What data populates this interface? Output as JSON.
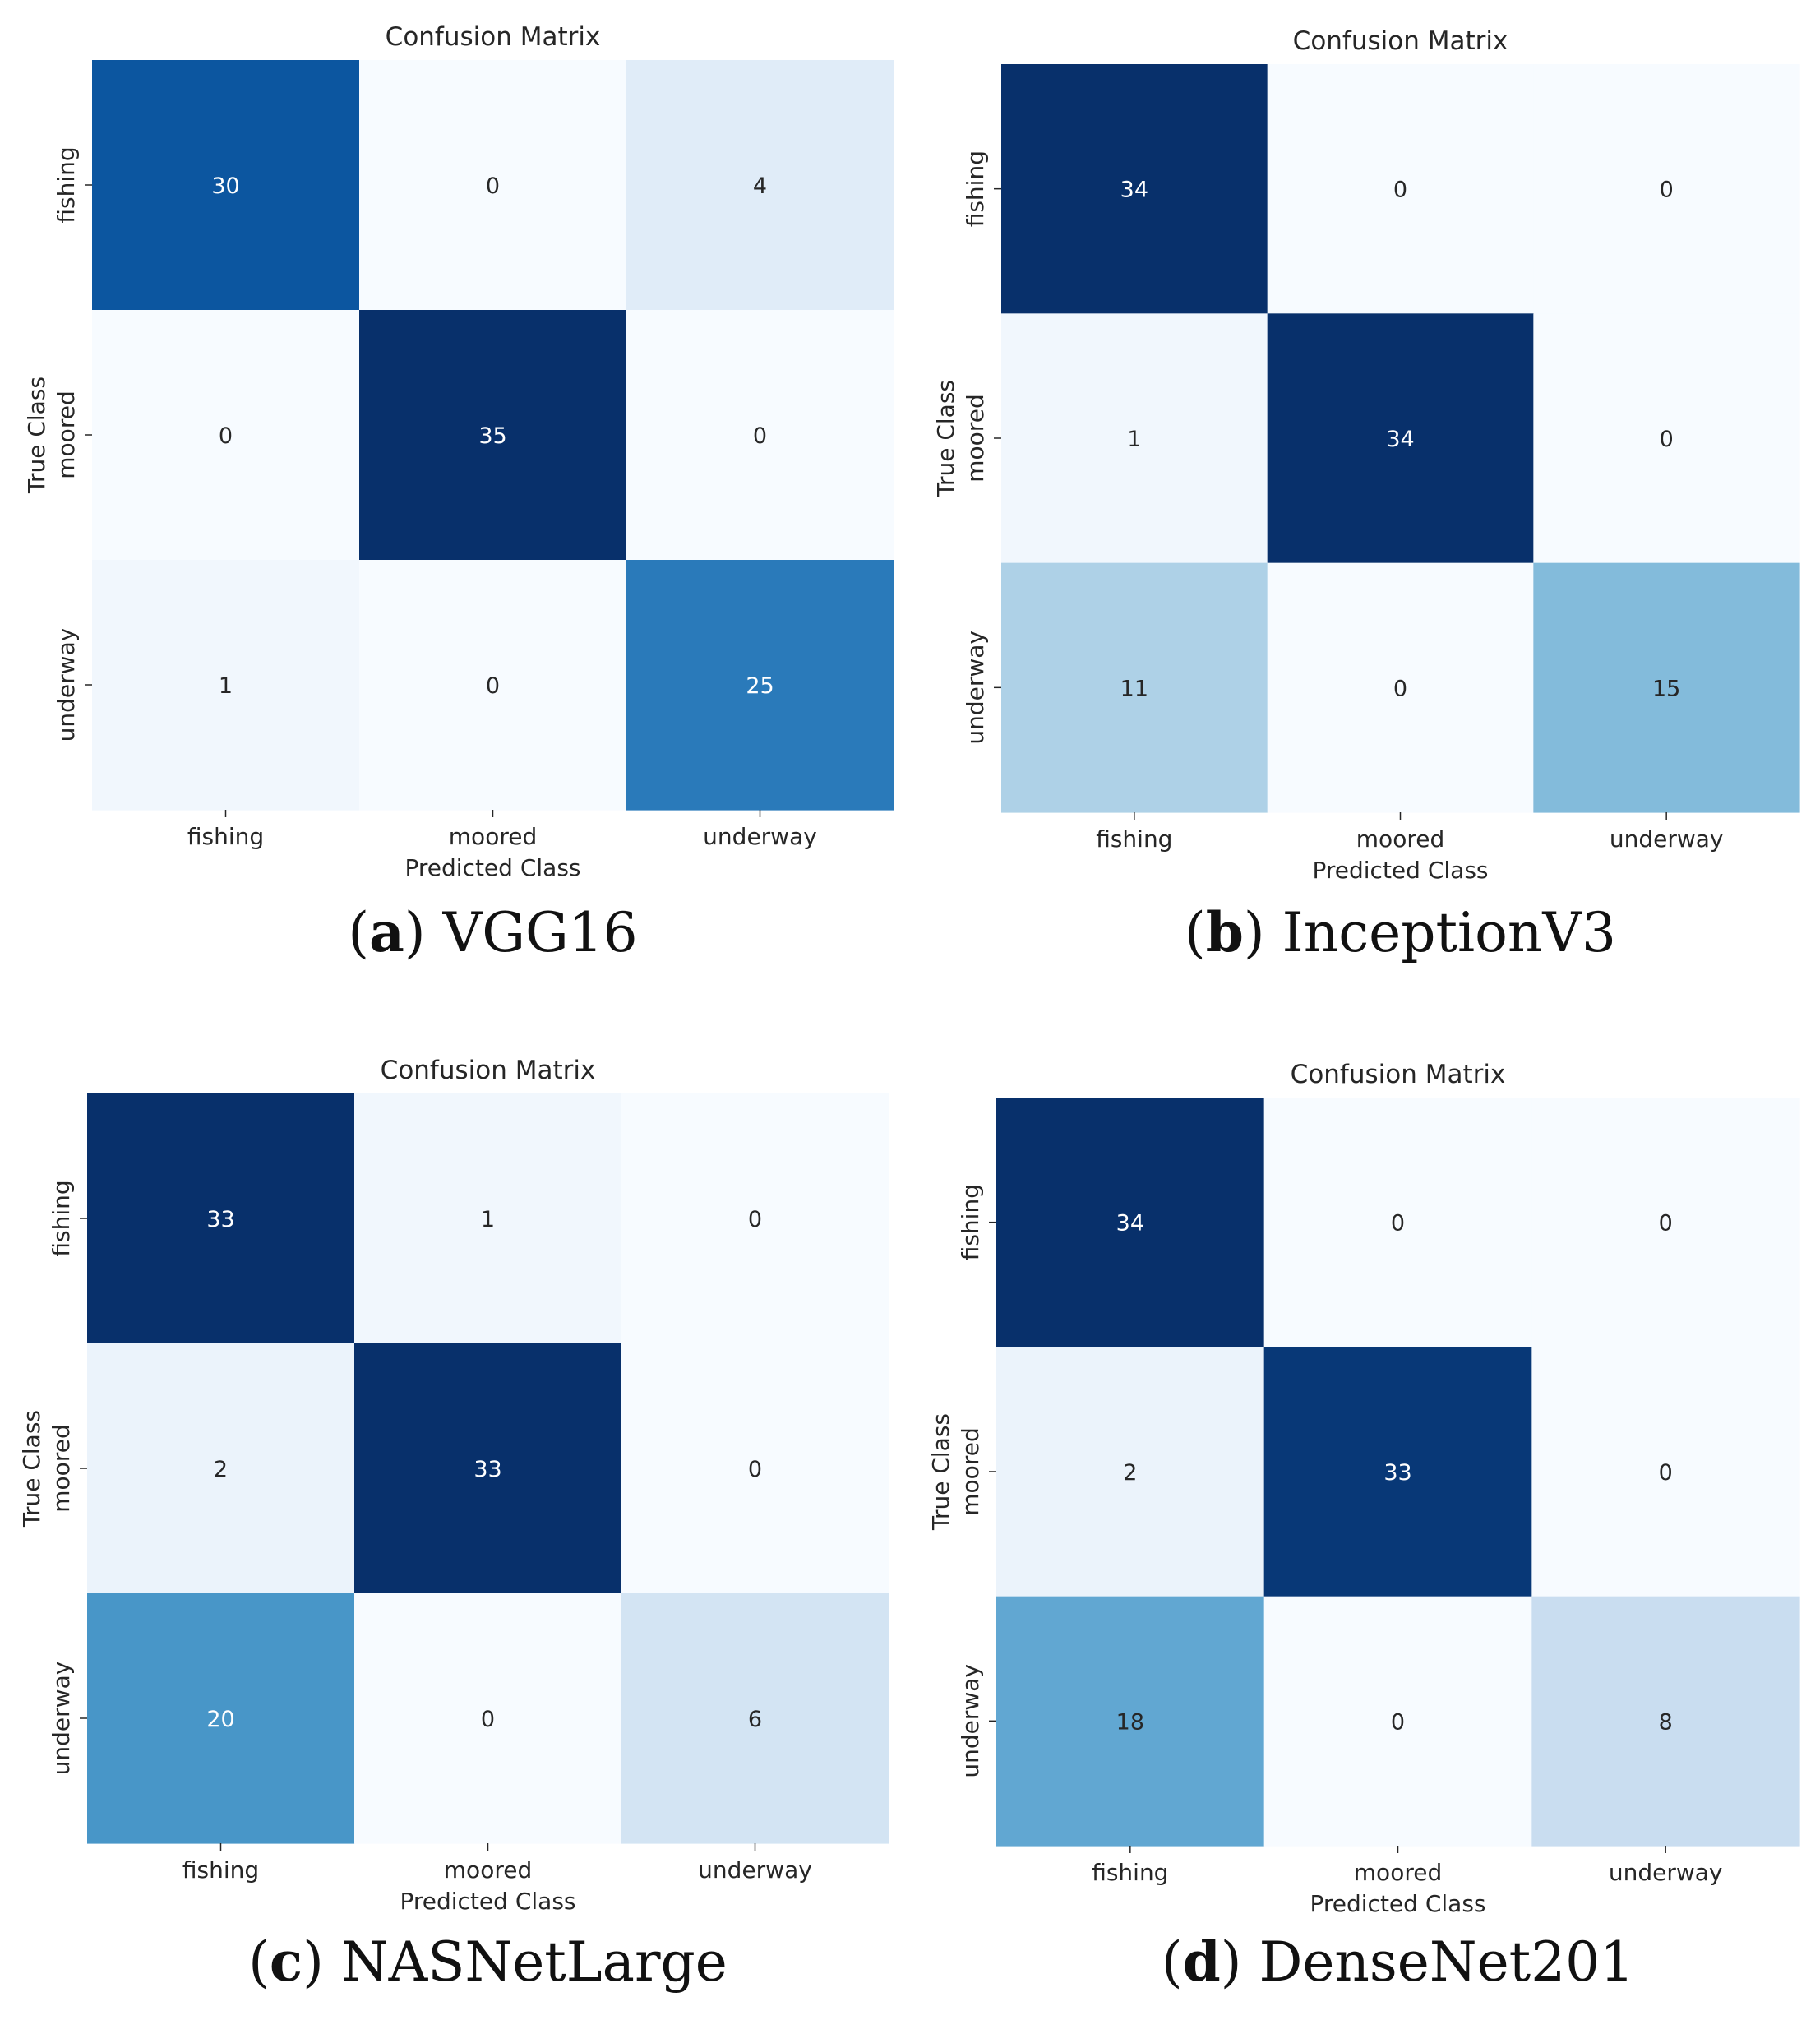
{
  "figure": {
    "panels": [
      {
        "letter": "a",
        "name": "VGG16"
      },
      {
        "letter": "b",
        "name": "InceptionV3"
      },
      {
        "letter": "c",
        "name": "NASNetLarge"
      },
      {
        "letter": "d",
        "name": "DenseNet201"
      }
    ]
  },
  "chart_data": [
    {
      "type": "heatmap",
      "title": "Confusion Matrix",
      "xlabel": "Predicted Class",
      "ylabel": "True Class",
      "x_categories": [
        "fishing",
        "moored",
        "underway"
      ],
      "y_categories": [
        "fishing",
        "moored",
        "underway"
      ],
      "values": [
        [
          30,
          0,
          4
        ],
        [
          0,
          35,
          0
        ],
        [
          1,
          0,
          25
        ]
      ],
      "colormap": "Blues",
      "color_range": [
        0,
        35
      ]
    },
    {
      "type": "heatmap",
      "title": "Confusion Matrix",
      "xlabel": "Predicted Class",
      "ylabel": "True Class",
      "x_categories": [
        "fishing",
        "moored",
        "underway"
      ],
      "y_categories": [
        "fishing",
        "moored",
        "underway"
      ],
      "values": [
        [
          34,
          0,
          0
        ],
        [
          1,
          34,
          0
        ],
        [
          11,
          0,
          15
        ]
      ],
      "colormap": "Blues",
      "color_range": [
        0,
        34
      ]
    },
    {
      "type": "heatmap",
      "title": "Confusion Matrix",
      "xlabel": "Predicted Class",
      "ylabel": "True Class",
      "x_categories": [
        "fishing",
        "moored",
        "underway"
      ],
      "y_categories": [
        "fishing",
        "moored",
        "underway"
      ],
      "values": [
        [
          33,
          1,
          0
        ],
        [
          2,
          33,
          0
        ],
        [
          20,
          0,
          6
        ]
      ],
      "colormap": "Blues",
      "color_range": [
        0,
        33
      ]
    },
    {
      "type": "heatmap",
      "title": "Confusion Matrix",
      "xlabel": "Predicted Class",
      "ylabel": "True Class",
      "x_categories": [
        "fishing",
        "moored",
        "underway"
      ],
      "y_categories": [
        "fishing",
        "moored",
        "underway"
      ],
      "values": [
        [
          34,
          0,
          0
        ],
        [
          2,
          33,
          0
        ],
        [
          18,
          0,
          8
        ]
      ],
      "colormap": "Blues",
      "color_range": [
        0,
        34
      ]
    }
  ]
}
